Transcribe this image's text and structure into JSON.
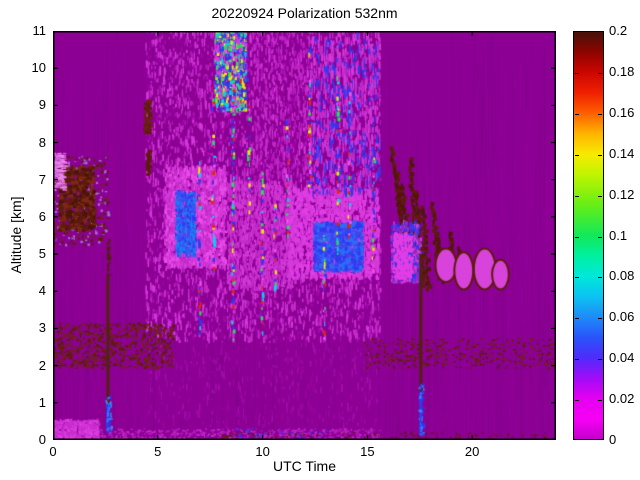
{
  "chart_data": {
    "type": "heatmap",
    "title": "20220924 Polarization 532nm",
    "xlabel": "UTC Time",
    "ylabel": "Altitude [km]",
    "x_range": [
      0,
      24
    ],
    "y_range": [
      0,
      11
    ],
    "x_ticks": [
      0,
      5,
      10,
      15,
      20
    ],
    "y_ticks": [
      0,
      1,
      2,
      3,
      4,
      5,
      6,
      7,
      8,
      9,
      10,
      11
    ],
    "axis_color": "#000000",
    "background_value_color": "#8c0094",
    "colorbar": {
      "range": [
        0,
        0.2
      ],
      "tick_values": [
        0,
        0.02,
        0.04,
        0.06,
        0.08,
        0.1,
        0.12,
        0.14,
        0.16,
        0.18,
        0.2
      ],
      "tick_labels": [
        "0",
        "0.02",
        "0.04",
        "0.06",
        "0.08",
        "0.1",
        "0.12",
        "0.14",
        "0.16",
        "0.18",
        "0.2"
      ],
      "gradient": [
        {
          "v": 0.0,
          "c": "#c400cc"
        },
        {
          "v": 0.01,
          "c": "#f600f6"
        },
        {
          "v": 0.02,
          "c": "#e400f0"
        },
        {
          "v": 0.03,
          "c": "#a00cf8"
        },
        {
          "v": 0.04,
          "c": "#4e2cfa"
        },
        {
          "v": 0.05,
          "c": "#2955fa"
        },
        {
          "v": 0.06,
          "c": "#1e8cf8"
        },
        {
          "v": 0.07,
          "c": "#0cc2f2"
        },
        {
          "v": 0.08,
          "c": "#00e8d8"
        },
        {
          "v": 0.09,
          "c": "#00f0a0"
        },
        {
          "v": 0.1,
          "c": "#12e85a"
        },
        {
          "v": 0.115,
          "c": "#66ee16"
        },
        {
          "v": 0.13,
          "c": "#c0f400"
        },
        {
          "v": 0.14,
          "c": "#f8ea00"
        },
        {
          "v": 0.15,
          "c": "#ffb400"
        },
        {
          "v": 0.16,
          "c": "#fe6000"
        },
        {
          "v": 0.17,
          "c": "#f02000"
        },
        {
          "v": 0.18,
          "c": "#cc0600"
        },
        {
          "v": 0.19,
          "c": "#8e0400"
        },
        {
          "v": 0.2,
          "c": "#46120a"
        }
      ]
    },
    "features": [
      {
        "type": "texture",
        "n": 850,
        "len": [
          15,
          130
        ],
        "colors": [
          "#7b0084",
          "#97009f"
        ],
        "alpha": 0.4
      },
      {
        "type": "speckle",
        "t": [
          4.4,
          15.6
        ],
        "a": [
          2.6,
          11
        ],
        "n": 3200,
        "colors": [
          "#ad14b6",
          "#bd24c4",
          "#a406ac"
        ],
        "w": [
          1,
          2
        ],
        "h": [
          2,
          5
        ]
      },
      {
        "type": "speckle",
        "t": [
          4.4,
          15.6
        ],
        "a": [
          2.6,
          11
        ],
        "n": 1700,
        "cols": 48,
        "colors": [
          "#c52cca",
          "#d438da"
        ],
        "w": [
          1,
          2
        ],
        "h": [
          3,
          9
        ]
      },
      {
        "type": "speckle",
        "t": [
          5.3,
          8.2
        ],
        "a": [
          4.6,
          7.3
        ],
        "n": 1700,
        "colors": [
          "#d43ad9",
          "#e94ce9",
          "#c52cca"
        ],
        "w": [
          1,
          3
        ],
        "h": [
          2,
          6
        ]
      },
      {
        "type": "speckle",
        "t": [
          5.82,
          6.75
        ],
        "a": [
          4.9,
          6.6
        ],
        "n": 520,
        "colors": [
          "#2b3bf2",
          "#3c50f5",
          "#1a80f0"
        ],
        "w": [
          1,
          3
        ],
        "h": [
          2,
          5
        ]
      },
      {
        "type": "speckle",
        "t": [
          8.3,
          11.4
        ],
        "a": [
          4.0,
          6.9
        ],
        "n": 1250,
        "colors": [
          "#d43ad9",
          "#c52cca"
        ],
        "w": [
          1,
          2
        ],
        "h": [
          2,
          6
        ]
      },
      {
        "type": "speckle",
        "t": [
          11.2,
          15.5
        ],
        "a": [
          4.3,
          6.7
        ],
        "n": 1500,
        "colors": [
          "#e23ee6",
          "#d43ad9"
        ],
        "w": [
          1,
          3
        ],
        "h": [
          2,
          6
        ]
      },
      {
        "type": "speckle",
        "t": [
          12.4,
          14.7
        ],
        "a": [
          4.5,
          5.8
        ],
        "n": 750,
        "colors": [
          "#2b3bf2",
          "#2e6cf5",
          "#4444ee"
        ],
        "w": [
          2,
          4
        ],
        "h": [
          2,
          5
        ]
      },
      {
        "type": "speckle",
        "t": [
          7.7,
          9.2
        ],
        "a": [
          8.8,
          11
        ],
        "n": 750,
        "cols": 6,
        "colors": [
          "#d43ad9",
          "#d43ad9",
          "#2b3bf2",
          "#2b3bf2",
          "#00d4f0",
          "#27e05a",
          "#e8f000"
        ],
        "w": [
          1,
          3
        ],
        "h": [
          2,
          5
        ]
      },
      {
        "type": "speckle",
        "t": [
          12.2,
          15.6
        ],
        "a": [
          6.5,
          10.8
        ],
        "n": 950,
        "cols": 11,
        "colors": [
          "#d43ad9",
          "#c52cca",
          "#2b3bf2"
        ],
        "w": [
          1,
          2
        ],
        "h": [
          3,
          9
        ]
      },
      {
        "type": "speckle",
        "t": [
          9.5,
          12.2
        ],
        "a": [
          7.0,
          11
        ],
        "n": 420,
        "colors": [
          "#c52cca",
          "#b218bc"
        ],
        "w": [
          1,
          2
        ],
        "h": [
          2,
          6
        ]
      },
      {
        "type": "fleckcols",
        "cols": [
          [
            6.95,
            2.8,
            7.5
          ],
          [
            7.6,
            4.5,
            9.5
          ],
          [
            8.2,
            8.8,
            11
          ],
          [
            8.55,
            2.6,
            10.8
          ],
          [
            8.9,
            9.0,
            11
          ],
          [
            9.3,
            6.0,
            9.0
          ],
          [
            9.95,
            2.7,
            7.2
          ],
          [
            10.55,
            4.0,
            6.5
          ],
          [
            11.15,
            5.5,
            9.0
          ],
          [
            12.2,
            6.8,
            10.5
          ],
          [
            12.9,
            2.6,
            6.0
          ],
          [
            13.55,
            5.0,
            9.8
          ],
          [
            14.1,
            5.2,
            9.6
          ],
          [
            15.25,
            4.6,
            8.0
          ]
        ],
        "colors": [
          "#2b3bf2",
          "#2b3bf2",
          "#00d4f0",
          "#27e05a",
          "#e8f000",
          "#ee55ee",
          "#e02800"
        ],
        "p": 0.5
      },
      {
        "type": "speckle",
        "t": [
          0,
          5.7
        ],
        "a": [
          1.9,
          3.1
        ],
        "n": 720,
        "colors": [
          "#5e1c0c",
          "#6e2410"
        ],
        "w": [
          1,
          3
        ],
        "h": [
          1,
          3
        ]
      },
      {
        "type": "speckle",
        "t": [
          14.8,
          24
        ],
        "a": [
          1.9,
          2.7
        ],
        "n": 430,
        "colors": [
          "#5e1c0c",
          "#6e2410"
        ],
        "w": [
          1,
          3
        ],
        "h": [
          1,
          2
        ]
      },
      {
        "type": "speckle",
        "t": [
          0,
          2.6
        ],
        "a": [
          5.2,
          7.6
        ],
        "n": 380,
        "colors": [
          "#5e1c0c",
          "#6e2410",
          "#a86ae0"
        ],
        "w": [
          1,
          3
        ],
        "h": [
          1,
          3
        ]
      },
      {
        "type": "speckle",
        "t": [
          0.25,
          1.9
        ],
        "a": [
          5.6,
          7.3
        ],
        "n": 520,
        "colors": [
          "#5e1c0c",
          "#4a1408",
          "#7a2a10"
        ],
        "w": [
          2,
          4
        ],
        "h": [
          2,
          4
        ]
      },
      {
        "type": "speckle",
        "t": [
          0,
          0.5
        ],
        "a": [
          6.7,
          7.7
        ],
        "n": 150,
        "colors": [
          "#e87ce8",
          "#ee8cee",
          "#d55ad8"
        ],
        "w": [
          2,
          5
        ],
        "h": [
          1,
          2
        ]
      },
      {
        "type": "speckle",
        "t": [
          4.3,
          4.62
        ],
        "a": [
          8.2,
          9.1
        ],
        "n": 110,
        "colors": [
          "#5e1c0c",
          "#6e2410"
        ],
        "w": [
          2,
          3
        ],
        "h": [
          2,
          3
        ]
      },
      {
        "type": "speckle",
        "t": [
          4.42,
          4.6
        ],
        "a": [
          7.1,
          7.75
        ],
        "n": 55,
        "colors": [
          "#5e1c0c"
        ],
        "w": [
          2,
          3
        ],
        "h": [
          2,
          3
        ]
      },
      {
        "type": "slant",
        "lines": [
          [
            16.05,
            7.9,
            16.55,
            5.9
          ],
          [
            16.3,
            7.3,
            16.75,
            5.0
          ],
          [
            16.6,
            6.9,
            17.0,
            4.4
          ],
          [
            16.95,
            7.6,
            17.3,
            4.8
          ],
          [
            17.25,
            6.7,
            17.6,
            4.2
          ],
          [
            17.55,
            6.3,
            17.85,
            4.1
          ],
          [
            18.0,
            6.4,
            18.35,
            4.4
          ],
          [
            18.3,
            5.6,
            18.6,
            4.3
          ],
          [
            18.85,
            5.6,
            19.1,
            4.5
          ],
          [
            19.3,
            5.2,
            19.5,
            4.6
          ]
        ],
        "colors": [
          "#5e1c0c",
          "#521608"
        ],
        "w": [
          2,
          5
        ]
      },
      {
        "type": "speckle",
        "t": [
          16.1,
          17.5
        ],
        "a": [
          4.2,
          5.8
        ],
        "n": 480,
        "colors": [
          "#2b3bf2",
          "#d43ad9",
          "#8b2bd0"
        ],
        "w": [
          1,
          3
        ],
        "h": [
          2,
          5
        ]
      },
      {
        "type": "speckle",
        "t": [
          16.2,
          17.1
        ],
        "a": [
          4.3,
          5.5
        ],
        "n": 260,
        "colors": [
          "#e23ee6"
        ],
        "w": [
          1,
          3
        ],
        "h": [
          2,
          4
        ]
      },
      {
        "type": "ellipses",
        "items": [
          [
            18.75,
            4.7,
            0.5,
            0.45
          ],
          [
            19.6,
            4.55,
            0.45,
            0.5
          ],
          [
            20.6,
            4.6,
            0.52,
            0.55
          ],
          [
            21.35,
            4.45,
            0.4,
            0.4
          ]
        ],
        "fill": "#d743db",
        "rim": "#5e1c0c"
      },
      {
        "type": "column",
        "t": 2.62,
        "a": [
          0.95,
          4.45
        ],
        "w": 3,
        "color": "#50220e"
      },
      {
        "type": "speckle",
        "t": [
          2.56,
          2.7
        ],
        "a": [
          4.4,
          5.35
        ],
        "n": 45,
        "colors": [
          "#50220e"
        ],
        "w": [
          1,
          2
        ],
        "h": [
          1,
          3
        ]
      },
      {
        "type": "column",
        "t": 2.62,
        "a": [
          0.2,
          0.97
        ],
        "w": 3,
        "color": "#2742f0"
      },
      {
        "type": "speckle",
        "t": [
          2.5,
          2.78
        ],
        "a": [
          0.15,
          1.15
        ],
        "n": 60,
        "colors": [
          "#2e8cff",
          "#2b3bf2"
        ],
        "w": [
          1,
          2
        ],
        "h": [
          1,
          3
        ]
      },
      {
        "type": "column",
        "t": 17.55,
        "a": [
          1.3,
          5.0
        ],
        "w": 3,
        "color": "#50220e"
      },
      {
        "type": "column",
        "t": 17.55,
        "a": [
          0.12,
          1.3
        ],
        "w": 3,
        "color": "#2742f0"
      },
      {
        "type": "speckle",
        "t": [
          17.44,
          17.7
        ],
        "a": [
          0.1,
          1.5
        ],
        "n": 70,
        "colors": [
          "#2e8cff",
          "#2b3bf2"
        ],
        "w": [
          1,
          2
        ],
        "h": [
          1,
          3
        ]
      },
      {
        "type": "speckle",
        "t": [
          0,
          2.15
        ],
        "a": [
          0,
          0.5
        ],
        "n": 600,
        "colors": [
          "#e23ee6",
          "#d035d4",
          "#c52cca"
        ],
        "w": [
          1,
          3
        ],
        "h": [
          1,
          3
        ]
      },
      {
        "type": "speckle",
        "t": [
          2.2,
          15.6
        ],
        "a": [
          0,
          0.28
        ],
        "n": 480,
        "colors": [
          "#c52cca",
          "#b218bc"
        ],
        "w": [
          1,
          3
        ],
        "h": [
          1,
          2
        ]
      },
      {
        "type": "speckle",
        "t": [
          8,
          24
        ],
        "a": [
          0,
          0.18
        ],
        "n": 130,
        "colors": [
          "#5e1c0c"
        ],
        "w": [
          1,
          2
        ],
        "h": [
          1,
          2
        ]
      },
      {
        "type": "speckle",
        "t": [
          8.8,
          13.4
        ],
        "a": [
          0,
          0.3
        ],
        "n": 26,
        "colors": [
          "#2b3bf2"
        ],
        "w": [
          1,
          2
        ],
        "h": [
          1,
          3
        ]
      },
      {
        "type": "speckle",
        "t": [
          4.5,
          15.5
        ],
        "a": [
          0.3,
          2.5
        ],
        "n": 380,
        "colors": [
          "#99059f",
          "#a30cab"
        ],
        "w": [
          1,
          2
        ],
        "h": [
          2,
          8
        ]
      }
    ]
  }
}
